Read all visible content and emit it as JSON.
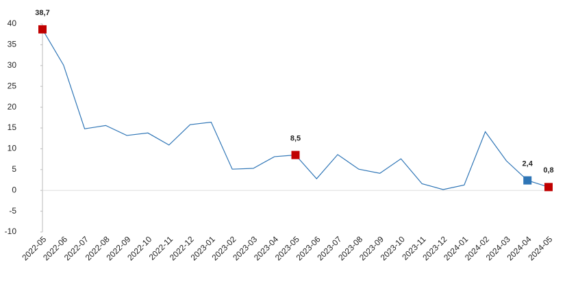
{
  "chart_data": {
    "type": "line",
    "categories": [
      "2022-05",
      "2022-06",
      "2022-07",
      "2022-08",
      "2022-09",
      "2022-10",
      "2022-11",
      "2022-12",
      "2023-01",
      "2023-02",
      "2023-03",
      "2023-04",
      "2023-05",
      "2023-06",
      "2023-07",
      "2023-08",
      "2023-09",
      "2023-10",
      "2023-11",
      "2023-12",
      "2024-01",
      "2024-02",
      "2024-03",
      "2024-04",
      "2024-05"
    ],
    "values": [
      38.7,
      30.1,
      14.8,
      15.6,
      13.2,
      13.8,
      10.9,
      15.8,
      16.4,
      5.1,
      5.3,
      8.1,
      8.5,
      2.8,
      8.6,
      5.1,
      4.1,
      7.6,
      1.6,
      0.2,
      1.3,
      14.1,
      7.1,
      2.4,
      0.8
    ],
    "value_labels": [
      "38,7",
      null,
      null,
      null,
      null,
      null,
      null,
      null,
      null,
      null,
      null,
      null,
      "8,5",
      null,
      null,
      null,
      null,
      null,
      null,
      null,
      null,
      null,
      null,
      "2,4",
      "0,8"
    ],
    "marker_colors": [
      "#c00000",
      null,
      null,
      null,
      null,
      null,
      null,
      null,
      null,
      null,
      null,
      null,
      "#c00000",
      null,
      null,
      null,
      null,
      null,
      null,
      null,
      null,
      null,
      null,
      "#2e75b6",
      "#c00000"
    ],
    "color": "#2e75b6",
    "ylim": [
      -10,
      40
    ],
    "yticks": [
      -10,
      -5,
      0,
      5,
      10,
      15,
      20,
      25,
      30,
      35,
      40
    ]
  }
}
